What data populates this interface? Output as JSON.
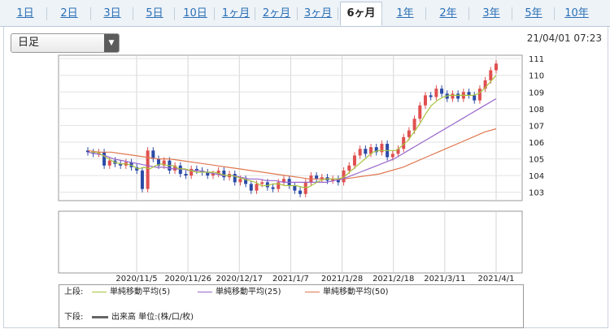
{
  "tabs": [
    {
      "label": "1日"
    },
    {
      "label": "2日"
    },
    {
      "label": "3日"
    },
    {
      "label": "5日"
    },
    {
      "label": "10日"
    },
    {
      "label": "1ヶ月"
    },
    {
      "label": "2ヶ月"
    },
    {
      "label": "3ヶ月"
    },
    {
      "label": "6ヶ月"
    },
    {
      "label": "1年"
    },
    {
      "label": "2年"
    },
    {
      "label": "3年"
    },
    {
      "label": "5年"
    },
    {
      "label": "10年"
    }
  ],
  "active_tab": "6ヶ月",
  "period_select": {
    "value": "日足"
  },
  "timestamp": "21/04/01 07:23",
  "legend": {
    "upper_label": "上段:",
    "lower_label": "下段:",
    "ma5": "単純移動平均(5)",
    "ma25": "単純移動平均(25)",
    "ma50": "単純移動平均(50)",
    "volume": "出来高 単位:(株/口/枚)"
  },
  "chart_data": {
    "type": "line",
    "x_ticks": [
      "2020/11/5",
      "2020/11/26",
      "2020/12/17",
      "2021/1/7",
      "2021/1/28",
      "2021/2/18",
      "2021/3/11",
      "2021/4/1"
    ],
    "ylim": [
      102.5,
      111.2
    ],
    "y_ticks": [
      103,
      104,
      105,
      106,
      107,
      108,
      109,
      110,
      111
    ],
    "grid": true,
    "legend_position": "bottom",
    "candles_close": [
      105.4,
      105.3,
      105.4,
      104.6,
      104.9,
      104.7,
      104.6,
      104.8,
      104.5,
      104.3,
      103.2,
      105.5,
      105.0,
      104.6,
      104.9,
      104.3,
      104.6,
      104.1,
      104.0,
      104.4,
      104.3,
      104.2,
      104.0,
      104.1,
      104.3,
      103.9,
      104.1,
      103.6,
      103.8,
      103.5,
      103.1,
      103.5,
      103.6,
      103.3,
      103.2,
      103.6,
      103.8,
      103.4,
      103.1,
      102.9,
      103.6,
      104.0,
      103.8,
      103.9,
      103.7,
      103.8,
      103.6,
      104.3,
      104.6,
      105.2,
      105.6,
      105.3,
      105.7,
      105.4,
      105.9,
      105.1,
      105.3,
      105.6,
      106.3,
      106.7,
      107.4,
      108.2,
      108.8,
      108.7,
      109.2,
      108.9,
      108.6,
      108.9,
      108.6,
      109.0,
      108.8,
      108.5,
      109.2,
      109.7,
      110.3,
      110.7
    ],
    "ma5": [
      105.4,
      105.4,
      105.2,
      105.0,
      104.8,
      104.7,
      104.7,
      104.6,
      104.4,
      104.5,
      104.4,
      104.6,
      104.7,
      104.6,
      104.6,
      104.4,
      104.4,
      104.3,
      104.2,
      104.2,
      104.2,
      104.2,
      104.1,
      104.0,
      104.0,
      103.9,
      103.8,
      103.7,
      103.6,
      103.4,
      103.4,
      103.5,
      103.5,
      103.4,
      103.4,
      103.4,
      103.3,
      103.3,
      103.5,
      103.7,
      103.8,
      103.8,
      103.8,
      103.9,
      104.2,
      104.5,
      104.8,
      105.1,
      105.4,
      105.5,
      105.5,
      105.5,
      105.5,
      105.8,
      106.1,
      106.6,
      107.1,
      107.7,
      108.2,
      108.5,
      108.7,
      108.8,
      108.8,
      108.8,
      108.8,
      108.8,
      108.9,
      109.2,
      109.6,
      110.0
    ],
    "ma25": [
      105.4,
      105.3,
      105.2,
      105.0,
      104.9,
      104.8,
      104.7,
      104.6,
      104.5,
      104.5,
      104.4,
      104.4,
      104.3,
      104.3,
      104.2,
      104.1,
      104.0,
      104.0,
      103.9,
      103.8,
      103.8,
      103.7,
      103.7,
      103.6,
      103.6,
      103.6,
      103.6,
      103.6,
      103.6,
      103.7,
      103.8,
      104.0,
      104.2,
      104.4,
      104.6,
      104.8,
      105.0,
      105.3,
      105.6,
      105.9,
      106.2,
      106.5,
      106.8,
      107.1,
      107.4,
      107.7,
      108.0,
      108.3,
      108.6
    ],
    "ma50": [
      105.5,
      105.4,
      105.4,
      105.3,
      105.2,
      105.1,
      105.0,
      105.0,
      104.9,
      104.8,
      104.7,
      104.6,
      104.5,
      104.4,
      104.3,
      104.2,
      104.1,
      104.0,
      103.9,
      103.8,
      103.8,
      103.8,
      103.8,
      103.9,
      104.0,
      104.1,
      104.3,
      104.5,
      104.8,
      105.1,
      105.4,
      105.7,
      106.0,
      106.3,
      106.6,
      106.8
    ],
    "series_colors": {
      "up": "#e05050",
      "down": "#2b4aa8",
      "ma5": "#a8c440",
      "ma25": "#9966cc",
      "ma50": "#e07850"
    }
  }
}
